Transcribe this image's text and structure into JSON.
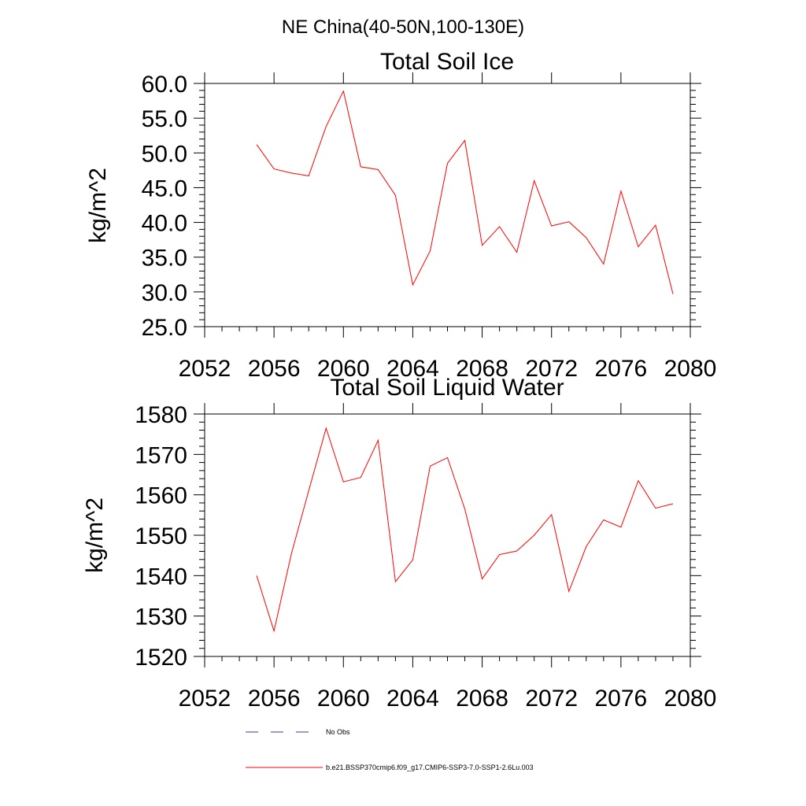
{
  "figure": {
    "title": "NE China(40-50N,100-130E)"
  },
  "colors": {
    "series": "#ff0000",
    "obs": "#3a3aa0",
    "axis": "#000000",
    "background": "#ffffff"
  },
  "legend": {
    "placement": "bottom",
    "entries": [
      {
        "label": "No Obs",
        "style": "dashed",
        "color": "#3a3aa0"
      },
      {
        "label": "b.e21.BSSP370cmip6.f09_g17.CMIP6-SSP3-7.0-SSP1-2.6Lu.003",
        "style": "solid",
        "color": "#ff0000"
      }
    ]
  },
  "chart_data": [
    {
      "type": "line",
      "title": "Total Soil Ice",
      "xlabel": "",
      "ylabel": "kg/m^2",
      "xlim": [
        2052,
        2080
      ],
      "ylim": [
        25,
        60
      ],
      "xticks": [
        2052,
        2056,
        2060,
        2064,
        2068,
        2072,
        2076,
        2080
      ],
      "xtick_labels": [
        "2052",
        "2056",
        "2060",
        "2064",
        "2068",
        "2072",
        "2076",
        "2080"
      ],
      "yticks": [
        25,
        30,
        35,
        40,
        45,
        50,
        55,
        60
      ],
      "ytick_labels": [
        "25.0",
        "30.0",
        "35.0",
        "40.0",
        "45.0",
        "50.0",
        "55.0",
        "60.0"
      ],
      "grid": false,
      "x": [
        2055,
        2056,
        2057,
        2058,
        2059,
        2060,
        2061,
        2062,
        2063,
        2064,
        2065,
        2066,
        2067,
        2068,
        2069,
        2070,
        2071,
        2072,
        2073,
        2074,
        2075,
        2076,
        2077,
        2078,
        2079
      ],
      "series": [
        {
          "name": "b.e21.BSSP370cmip6.f09_g17.CMIP6-SSP3-7.0-SSP1-2.6Lu.003",
          "values": [
            51.2,
            47.7,
            47.1,
            46.7,
            53.8,
            58.9,
            48.0,
            47.6,
            43.9,
            31.0,
            35.9,
            48.5,
            51.8,
            36.7,
            39.4,
            35.7,
            46.0,
            39.5,
            40.1,
            37.8,
            34.0,
            44.5,
            36.5,
            39.6,
            29.7
          ]
        }
      ]
    },
    {
      "type": "line",
      "title": "Total Soil Liquid Water",
      "xlabel": "",
      "ylabel": "kg/m^2",
      "xlim": [
        2052,
        2080
      ],
      "ylim": [
        1520,
        1580
      ],
      "xticks": [
        2052,
        2056,
        2060,
        2064,
        2068,
        2072,
        2076,
        2080
      ],
      "xtick_labels": [
        "2052",
        "2056",
        "2060",
        "2064",
        "2068",
        "2072",
        "2076",
        "2080"
      ],
      "yticks": [
        1520,
        1530,
        1540,
        1550,
        1560,
        1570,
        1580
      ],
      "ytick_labels": [
        "1520",
        "1530",
        "1540",
        "1550",
        "1560",
        "1570",
        "1580"
      ],
      "grid": false,
      "x": [
        2055,
        2056,
        2057,
        2058,
        2059,
        2060,
        2061,
        2062,
        2063,
        2064,
        2065,
        2066,
        2067,
        2068,
        2069,
        2070,
        2071,
        2072,
        2073,
        2074,
        2075,
        2076,
        2077,
        2078,
        2079
      ],
      "series": [
        {
          "name": "b.e21.BSSP370cmip6.f09_g17.CMIP6-SSP3-7.0-SSP1-2.6Lu.003",
          "values": [
            1540.0,
            1526.3,
            1545.4,
            1561.0,
            1576.5,
            1563.2,
            1564.3,
            1573.5,
            1538.5,
            1543.9,
            1567.1,
            1569.2,
            1556.5,
            1539.2,
            1545.2,
            1546.1,
            1550.0,
            1555.1,
            1536.1,
            1547.2,
            1553.8,
            1552.0,
            1563.5,
            1556.7,
            1557.8
          ]
        }
      ]
    }
  ]
}
